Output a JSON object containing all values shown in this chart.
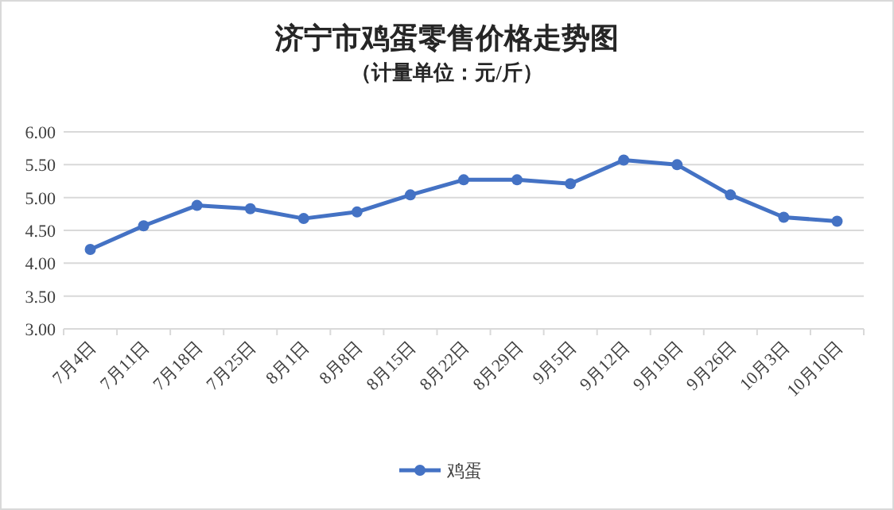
{
  "chart_data": {
    "type": "line",
    "title": "济宁市鸡蛋零售价格走势图",
    "subtitle": "（计量单位：元/斤）",
    "categories": [
      "7月4日",
      "7月11日",
      "7月18日",
      "7月25日",
      "8月1日",
      "8月8日",
      "8月15日",
      "8月22日",
      "8月29日",
      "9月5日",
      "9月12日",
      "9月19日",
      "9月26日",
      "10月3日",
      "10月10日"
    ],
    "series": [
      {
        "name": "鸡蛋",
        "color": "#4472c4",
        "values": [
          4.21,
          4.57,
          4.88,
          4.83,
          4.68,
          4.78,
          5.04,
          5.27,
          5.27,
          5.21,
          5.57,
          5.5,
          5.04,
          4.7,
          4.64
        ]
      }
    ],
    "ylim": [
      3,
      6
    ],
    "yticks": [
      {
        "value": 3,
        "label": "3.00"
      },
      {
        "value": 3.5,
        "label": "3.50"
      },
      {
        "value": 4,
        "label": "4.00"
      },
      {
        "value": 4.5,
        "label": "4.50"
      },
      {
        "value": 5,
        "label": "5.00"
      },
      {
        "value": 5.5,
        "label": "5.50"
      },
      {
        "value": 6,
        "label": "6.00"
      }
    ],
    "grid": "y",
    "legend": "bottom",
    "marker": "circle",
    "line_style": "solid"
  }
}
